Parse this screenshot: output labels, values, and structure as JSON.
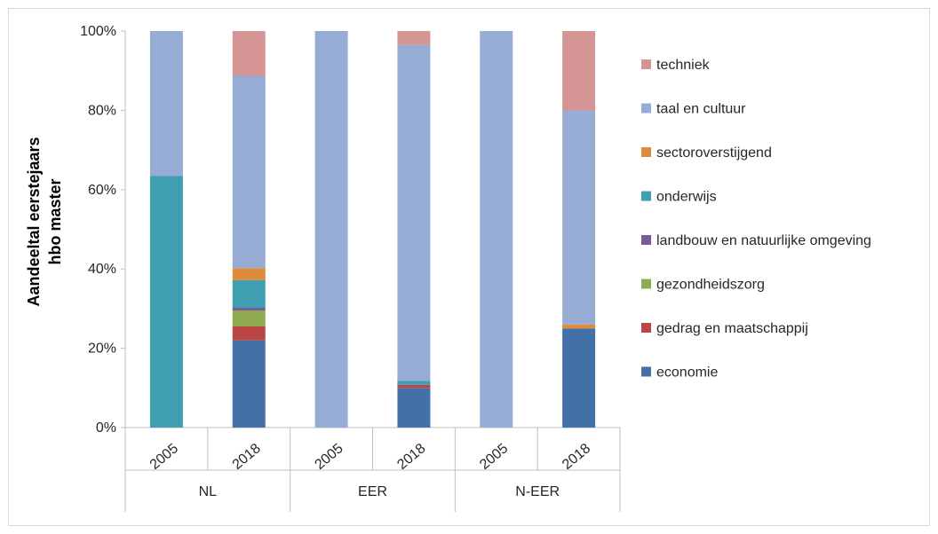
{
  "chart_data": {
    "type": "bar",
    "stacked": true,
    "percent": true,
    "ylabel_lines": [
      "Aandeeltal eerstejaars",
      "hbo master"
    ],
    "y_ticks": [
      "0%",
      "20%",
      "40%",
      "60%",
      "80%",
      "100%"
    ],
    "ylim": [
      0,
      100
    ],
    "groups": [
      "NL",
      "EER",
      "N-EER"
    ],
    "categories": [
      "2005",
      "2018",
      "2005",
      "2018",
      "2005",
      "2018"
    ],
    "legend_position": "right",
    "series": [
      {
        "name": "economie",
        "color": "#4470a8",
        "values": [
          0,
          22,
          0,
          10,
          0,
          25
        ]
      },
      {
        "name": "gedrag en maatschappij",
        "color": "#b94545",
        "values": [
          0,
          3.5,
          0,
          0.8,
          0,
          0
        ]
      },
      {
        "name": "gezondheidszorg",
        "color": "#8faa4f",
        "values": [
          0,
          4,
          0,
          0,
          0,
          0
        ]
      },
      {
        "name": "landbouw en natuurlijke omgeving",
        "color": "#7a5b98",
        "values": [
          0,
          0.7,
          0,
          0,
          0,
          0
        ]
      },
      {
        "name": "onderwijs",
        "color": "#3f9fb0",
        "values": [
          63.5,
          7,
          0,
          1,
          0,
          0
        ]
      },
      {
        "name": "sectoroverstijgend",
        "color": "#e08a3c",
        "values": [
          0,
          3,
          0,
          0,
          0,
          1
        ]
      },
      {
        "name": "taal en cultuur",
        "color": "#97acd5",
        "values": [
          36.5,
          48.5,
          100,
          84.7,
          100,
          54
        ]
      },
      {
        "name": "techniek",
        "color": "#d59594",
        "values": [
          0,
          11.3,
          0,
          3.5,
          0,
          20
        ]
      }
    ]
  }
}
